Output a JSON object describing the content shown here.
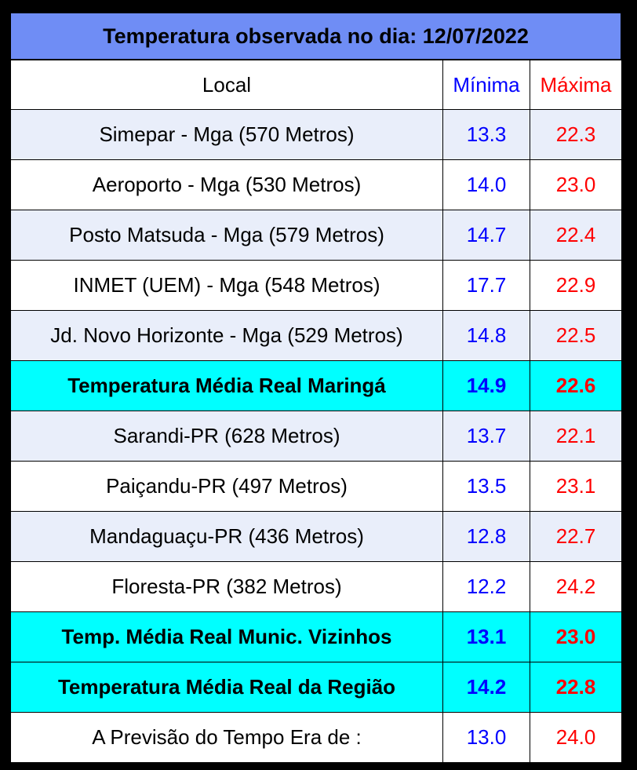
{
  "title": "Temperatura observada no dia: 12/07/2022",
  "columns": {
    "local": "Local",
    "min": "Mínima",
    "max": "Máxima"
  },
  "rows": [
    {
      "local": "Simepar - Mga  (570 Metros)",
      "min": "13.3",
      "max": "22.3",
      "kind": "alt"
    },
    {
      "local": "Aeroporto - Mga (530 Metros)",
      "min": "14.0",
      "max": "23.0",
      "kind": "plain"
    },
    {
      "local": "Posto Matsuda - Mga (579 Metros)",
      "min": "14.7",
      "max": "22.4",
      "kind": "alt"
    },
    {
      "local": "INMET (UEM) - Mga  (548 Metros)",
      "min": "17.7",
      "max": "22.9",
      "kind": "plain"
    },
    {
      "local": "Jd. Novo Horizonte - Mga (529 Metros)",
      "min": "14.8",
      "max": "22.5",
      "kind": "alt"
    },
    {
      "local": "Temperatura Média Real Maringá",
      "min": "14.9",
      "max": "22.6",
      "kind": "avg"
    },
    {
      "local": "Sarandi-PR  (628 Metros)",
      "min": "13.7",
      "max": "22.1",
      "kind": "alt"
    },
    {
      "local": "Paiçandu-PR (497 Metros)",
      "min": "13.5",
      "max": "23.1",
      "kind": "plain"
    },
    {
      "local": "Mandaguaçu-PR (436 Metros)",
      "min": "12.8",
      "max": "22.7",
      "kind": "alt"
    },
    {
      "local": "Floresta-PR (382 Metros)",
      "min": "12.2",
      "max": "24.2",
      "kind": "plain"
    },
    {
      "local": "Temp. Média Real Munic. Vizinhos",
      "min": "13.1",
      "max": "23.0",
      "kind": "avg"
    },
    {
      "local": "Temperatura Média Real da Região",
      "min": "14.2",
      "max": "22.8",
      "kind": "avg"
    },
    {
      "local": "A Previsão do Tempo Era de :",
      "min": "13.0",
      "max": "24.0",
      "kind": "plain"
    }
  ],
  "colors": {
    "title_bg": "#6f8df5",
    "alt_row_bg": "#e9eefa",
    "avg_row_bg": "#00ffff",
    "min_text": "#0000ff",
    "max_text": "#ff0000"
  }
}
